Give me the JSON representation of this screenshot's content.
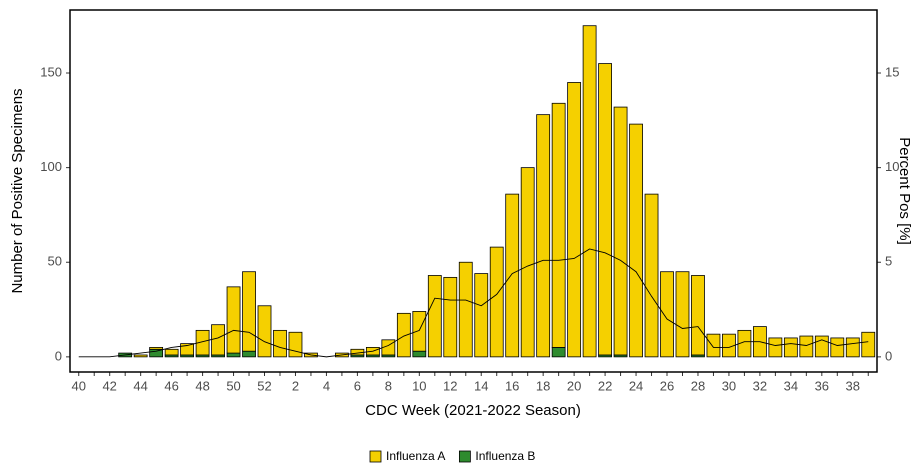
{
  "chart_data": {
    "type": "bar",
    "stacked": true,
    "x_label": "CDC Week (2021-2022 Season)",
    "y_label": "Number of Positive Specimens",
    "y2_label": "Percent Pos [%]",
    "categories": [
      "40",
      null,
      "42",
      null,
      "44",
      null,
      "46",
      null,
      "48",
      null,
      "50",
      null,
      "52",
      null,
      "2",
      null,
      "4",
      null,
      "6",
      null,
      "8",
      null,
      "10",
      null,
      "12",
      null,
      "14",
      null,
      "16",
      null,
      "18",
      null,
      "20",
      null,
      "22",
      null,
      "24",
      null,
      "26",
      null,
      "28",
      null,
      "30",
      null,
      "32",
      null,
      "34",
      null,
      "36",
      null,
      "38",
      null
    ],
    "series": [
      {
        "name": "Influenza A",
        "color": "#f5d000",
        "values": [
          0,
          0,
          0,
          0,
          1,
          1,
          3,
          6,
          13,
          16,
          35,
          42,
          27,
          14,
          13,
          2,
          0,
          2,
          3,
          4,
          8,
          23,
          21,
          43,
          42,
          50,
          44,
          58,
          86,
          100,
          128,
          129,
          145,
          175,
          154,
          131,
          123,
          86,
          45,
          45,
          42,
          12,
          12,
          14,
          16,
          10,
          10,
          11,
          11,
          10,
          10,
          13
        ]
      },
      {
        "name": "Influenza B",
        "color": "#2e8b2e",
        "values": [
          0,
          0,
          0,
          2,
          0,
          4,
          1,
          1,
          1,
          1,
          2,
          3,
          0,
          0,
          0,
          0,
          0,
          0,
          1,
          1,
          1,
          0,
          3,
          0,
          0,
          0,
          0,
          0,
          0,
          0,
          0,
          5,
          0,
          0,
          1,
          1,
          0,
          0,
          0,
          0,
          1,
          0,
          0,
          0,
          0,
          0,
          0,
          0,
          0,
          0,
          0,
          0
        ]
      }
    ],
    "line": {
      "axis": "y2",
      "color": "#000000",
      "values": [
        0,
        0,
        0,
        0.1,
        0.2,
        0.3,
        0.5,
        0.6,
        0.8,
        1.0,
        1.4,
        1.3,
        0.8,
        0.5,
        0.3,
        0.1,
        0,
        0.1,
        0.2,
        0.3,
        0.6,
        1.1,
        1.4,
        3.1,
        3.0,
        3.0,
        2.7,
        3.3,
        4.4,
        4.8,
        5.1,
        5.1,
        5.2,
        5.7,
        5.5,
        5.1,
        4.5,
        3.2,
        2.0,
        1.5,
        1.6,
        0.5,
        0.5,
        0.8,
        0.8,
        0.6,
        0.7,
        0.6,
        0.9,
        0.6,
        0.7,
        0.8
      ]
    },
    "ylim": [
      -8,
      183.3
    ],
    "yticks": [
      0,
      50,
      100,
      150
    ],
    "y2lim": [
      -0.8,
      18.33
    ],
    "y2ticks": [
      0,
      5,
      10,
      15
    ]
  }
}
